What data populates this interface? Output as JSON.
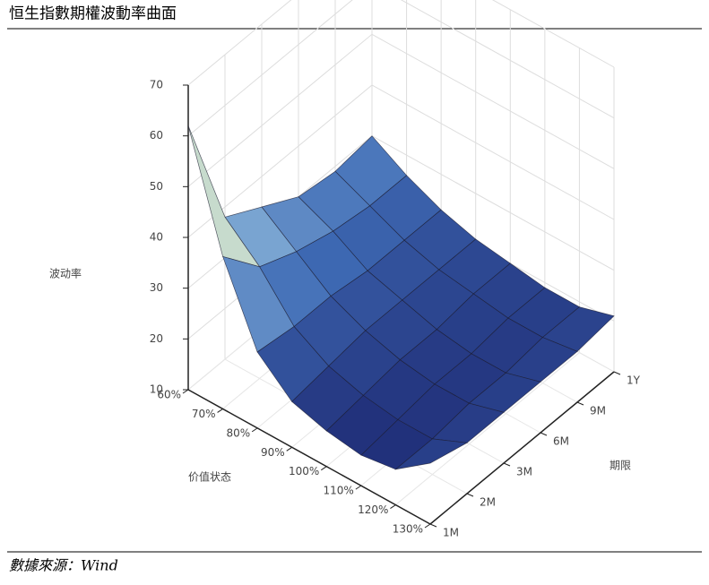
{
  "header": {
    "title": "恒生指數期權波動率曲面"
  },
  "chart_data": {
    "type": "surface",
    "z_label": "波动率",
    "x_label": "价值状态",
    "y_label": "期限",
    "x_categories": [
      "60%",
      "70%",
      "80%",
      "90%",
      "100%",
      "110%",
      "120%",
      "130%"
    ],
    "y_categories": [
      "1M",
      "2M",
      "3M",
      "6M",
      "9M",
      "1Y"
    ],
    "z": [
      [
        62,
        38,
        34,
        30,
        29,
        30
      ],
      [
        40,
        32,
        29,
        27,
        26,
        26
      ],
      [
        25,
        24,
        24,
        23,
        23,
        23
      ],
      [
        19,
        20,
        21,
        21,
        21,
        21
      ],
      [
        17,
        18,
        19,
        19,
        20,
        20
      ],
      [
        16,
        17,
        18,
        18,
        19,
        19
      ],
      [
        17,
        17,
        18,
        18,
        19,
        19
      ],
      [
        22,
        20,
        20,
        20,
        20,
        21
      ]
    ],
    "zlim": [
      10,
      70
    ],
    "zticks": [
      10,
      20,
      30,
      40,
      50,
      60,
      70
    ],
    "grid": true,
    "colorscale": [
      "#1c2670",
      "#3f6bb5",
      "#9cc6e2",
      "#f3f0b8",
      "#3a0e1e"
    ]
  },
  "footer": {
    "source": "數據來源：Wind"
  }
}
